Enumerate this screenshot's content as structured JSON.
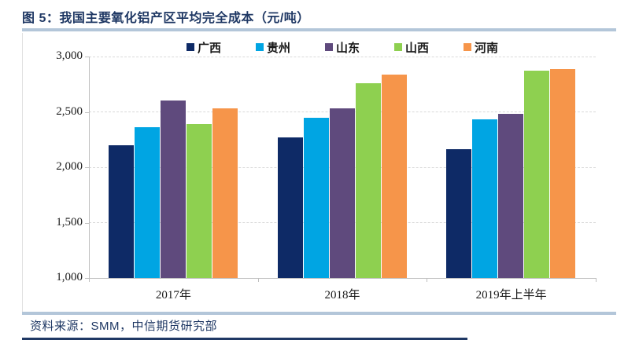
{
  "page": {
    "title": "图 5：我国主要氧化铝产区平均完全成本（元/吨）",
    "source_note": "资料来源：SMM，中信期货研究部"
  },
  "colors": {
    "title_text": "#1f3864",
    "divider_bar": "#b3c6d9",
    "bottom_rule": "#1f3864",
    "gridline": "#d9d9d9",
    "axis_line": "#bfbfbf",
    "axis_text": "#1a1a1a"
  },
  "chart_data": {
    "type": "bar",
    "title": "我国主要氧化铝产区平均完全成本（元/吨）",
    "categories": [
      "2017年",
      "2018年",
      "2019年上半年"
    ],
    "series": [
      {
        "name": "广西",
        "color": "#0e2a66",
        "values": [
          2200,
          2270,
          2160
        ]
      },
      {
        "name": "贵州",
        "color": "#00a5e3",
        "values": [
          2360,
          2450,
          2430
        ]
      },
      {
        "name": "山东",
        "color": "#5f4a7d",
        "values": [
          2600,
          2530,
          2480
        ]
      },
      {
        "name": "山西",
        "color": "#8ed050",
        "values": [
          2390,
          2760,
          2870
        ]
      },
      {
        "name": "河南",
        "color": "#f6954a",
        "values": [
          2530,
          2840,
          2890
        ]
      }
    ],
    "ylabel": "",
    "xlabel": "",
    "ylim": [
      1000,
      3000
    ],
    "ytick_interval": 500,
    "ytick_labels": [
      "1,000",
      "1,500",
      "2,000",
      "2,500",
      "3,000"
    ],
    "legend_position": "top-center",
    "grid": "horizontal-dashed"
  }
}
